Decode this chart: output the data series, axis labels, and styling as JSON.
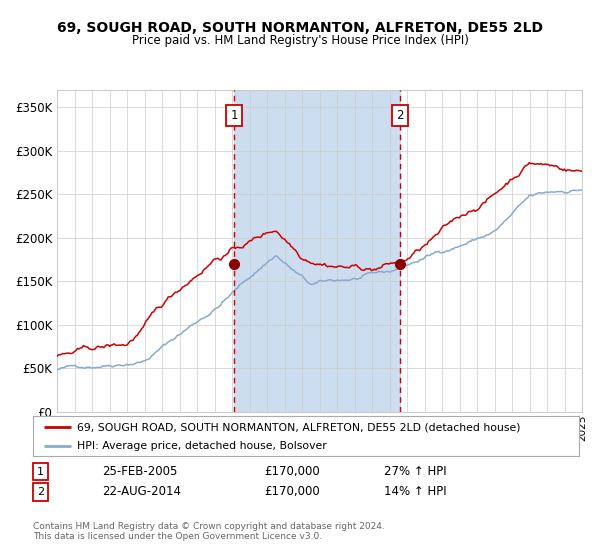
{
  "title1": "69, SOUGH ROAD, SOUTH NORMANTON, ALFRETON, DE55 2LD",
  "title2": "Price paid vs. HM Land Registry's House Price Index (HPI)",
  "ylim": [
    0,
    370000
  ],
  "yticks": [
    0,
    50000,
    100000,
    150000,
    200000,
    250000,
    300000,
    350000
  ],
  "ytick_labels": [
    "£0",
    "£50K",
    "£100K",
    "£150K",
    "£200K",
    "£250K",
    "£300K",
    "£350K"
  ],
  "sale1_date": 2005.12,
  "sale1_price": 170000,
  "sale1_label": "1",
  "sale2_date": 2014.62,
  "sale2_price": 170000,
  "sale2_label": "2",
  "legend1": "69, SOUGH ROAD, SOUTH NORMANTON, ALFRETON, DE55 2LD (detached house)",
  "legend2": "HPI: Average price, detached house, Bolsover",
  "table_row1_num": "1",
  "table_row1_date": "25-FEB-2005",
  "table_row1_price": "£170,000",
  "table_row1_hpi": "27% ↑ HPI",
  "table_row2_num": "2",
  "table_row2_date": "22-AUG-2014",
  "table_row2_price": "£170,000",
  "table_row2_hpi": "14% ↑ HPI",
  "footer": "Contains HM Land Registry data © Crown copyright and database right 2024.\nThis data is licensed under the Open Government Licence v3.0.",
  "red_color": "#cc0000",
  "blue_color": "#88aacc",
  "shade_color": "#ccddf0",
  "grid_color": "#cccccc",
  "fig_bg": "#f8f8f8"
}
